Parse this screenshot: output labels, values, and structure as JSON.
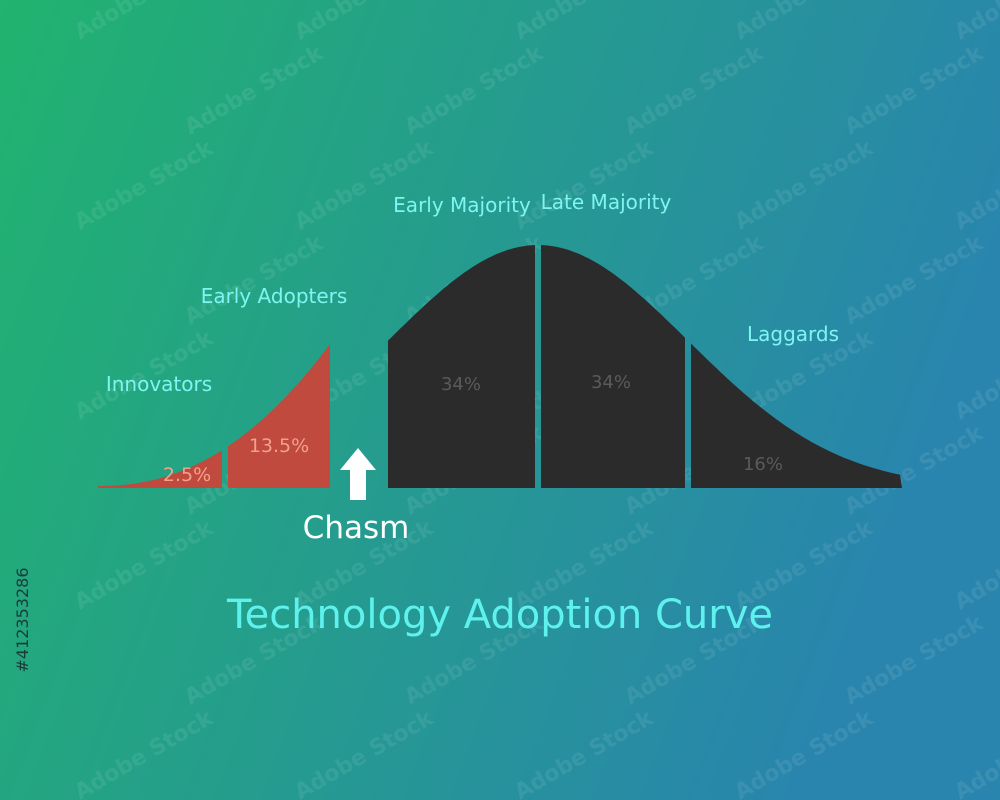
{
  "title": "Technology Adoption Curve",
  "chasm": "Chasm",
  "segments": [
    {
      "label": "Innovators",
      "percent": "2.5%"
    },
    {
      "label": "Early Adopters",
      "percent": "13.5%"
    },
    {
      "label": "Early Majority",
      "percent": "34%"
    },
    {
      "label": "Late Majority",
      "percent": "34%"
    },
    {
      "label": "Laggards",
      "percent": "16%"
    }
  ],
  "watermark": "Adobe Stock",
  "image_id": "#412353286"
}
